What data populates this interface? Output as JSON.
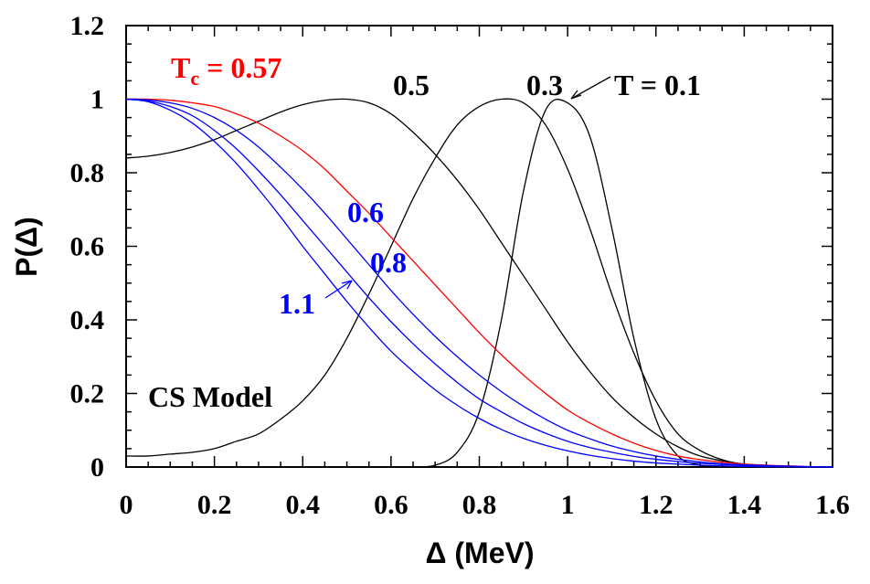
{
  "chart_data": {
    "type": "line",
    "title": "",
    "xlabel": "Δ (MeV)",
    "ylabel": "P(Δ)",
    "xlim": [
      0,
      1.6
    ],
    "ylim": [
      0,
      1.2
    ],
    "x_ticks": [
      "0",
      "0.2",
      "0.4",
      "0.6",
      "0.8",
      "1",
      "1.2",
      "1.4",
      "1.6"
    ],
    "y_ticks": [
      "0",
      "0.2",
      "0.4",
      "0.6",
      "0.8",
      "1",
      "1.2"
    ],
    "x": [
      0,
      0.05,
      0.1,
      0.15,
      0.2,
      0.25,
      0.3,
      0.35,
      0.4,
      0.45,
      0.5,
      0.55,
      0.6,
      0.65,
      0.7,
      0.75,
      0.8,
      0.85,
      0.9,
      0.95,
      1.0,
      1.05,
      1.1,
      1.15,
      1.2,
      1.25,
      1.3,
      1.35,
      1.4,
      1.45,
      1.5,
      1.55,
      1.6
    ],
    "series": [
      {
        "name": "T = 0.1",
        "color": "#000000",
        "values": [
          0,
          0,
          0,
          0,
          0,
          0,
          0,
          0,
          0,
          0,
          0,
          0,
          0,
          0,
          0.005,
          0.04,
          0.15,
          0.4,
          0.75,
          0.97,
          0.99,
          0.9,
          0.65,
          0.35,
          0.13,
          0.03,
          0.005,
          0,
          0,
          0,
          0,
          0,
          0
        ]
      },
      {
        "name": "0.3",
        "color": "#000000",
        "values": [
          0.03,
          0.03,
          0.035,
          0.04,
          0.05,
          0.07,
          0.09,
          0.13,
          0.18,
          0.25,
          0.35,
          0.47,
          0.6,
          0.73,
          0.84,
          0.93,
          0.98,
          1.0,
          0.99,
          0.93,
          0.81,
          0.65,
          0.47,
          0.31,
          0.18,
          0.09,
          0.045,
          0.02,
          0.007,
          0.002,
          0,
          0,
          0
        ]
      },
      {
        "name": "0.5",
        "color": "#000000",
        "values": [
          0.84,
          0.845,
          0.855,
          0.87,
          0.89,
          0.915,
          0.94,
          0.965,
          0.985,
          0.997,
          1.0,
          0.99,
          0.96,
          0.91,
          0.85,
          0.78,
          0.7,
          0.61,
          0.52,
          0.43,
          0.34,
          0.26,
          0.19,
          0.135,
          0.09,
          0.055,
          0.03,
          0.017,
          0.008,
          0.004,
          0.001,
          0,
          0
        ]
      },
      {
        "name": "Tc = 0.57",
        "color": "#ff0000",
        "values": [
          1.0,
          1.0,
          0.997,
          0.99,
          0.98,
          0.96,
          0.935,
          0.9,
          0.86,
          0.81,
          0.75,
          0.69,
          0.625,
          0.56,
          0.495,
          0.43,
          0.365,
          0.305,
          0.25,
          0.2,
          0.155,
          0.12,
          0.09,
          0.065,
          0.045,
          0.03,
          0.02,
          0.013,
          0.008,
          0.005,
          0.003,
          0.001,
          0
        ]
      },
      {
        "name": "0.6",
        "color": "#0000ff",
        "values": [
          1.0,
          0.998,
          0.99,
          0.975,
          0.95,
          0.915,
          0.87,
          0.815,
          0.755,
          0.69,
          0.62,
          0.55,
          0.48,
          0.415,
          0.355,
          0.3,
          0.25,
          0.205,
          0.165,
          0.13,
          0.1,
          0.077,
          0.057,
          0.042,
          0.03,
          0.021,
          0.014,
          0.009,
          0.006,
          0.004,
          0.002,
          0.001,
          0
        ]
      },
      {
        "name": "0.8",
        "color": "#0000ff",
        "values": [
          1.0,
          0.995,
          0.98,
          0.955,
          0.915,
          0.865,
          0.805,
          0.74,
          0.67,
          0.6,
          0.53,
          0.46,
          0.395,
          0.335,
          0.28,
          0.23,
          0.185,
          0.15,
          0.118,
          0.092,
          0.07,
          0.053,
          0.04,
          0.029,
          0.021,
          0.015,
          0.01,
          0.007,
          0.005,
          0.003,
          0.002,
          0.001,
          0
        ]
      },
      {
        "name": "1.1",
        "color": "#0000ff",
        "values": [
          1.0,
          0.993,
          0.97,
          0.935,
          0.885,
          0.825,
          0.755,
          0.68,
          0.6,
          0.525,
          0.45,
          0.38,
          0.315,
          0.26,
          0.21,
          0.168,
          0.132,
          0.102,
          0.078,
          0.059,
          0.044,
          0.032,
          0.023,
          0.016,
          0.011,
          0.008,
          0.005,
          0.003,
          0.002,
          0.001,
          0.001,
          0,
          0
        ]
      }
    ],
    "annotations": [
      {
        "text": "T",
        "sub": "c",
        "suffix": " = 0.57",
        "color": "#ff0000"
      },
      {
        "text": "0.5",
        "color": "#000000"
      },
      {
        "text": "0.3",
        "color": "#000000"
      },
      {
        "text": "T = 0.1",
        "color": "#000000"
      },
      {
        "text": "0.6",
        "color": "#0000ff"
      },
      {
        "text": "0.8",
        "color": "#0000ff"
      },
      {
        "text": "1.1",
        "color": "#0000ff"
      },
      {
        "text": "CS Model",
        "color": "#000000"
      }
    ]
  }
}
